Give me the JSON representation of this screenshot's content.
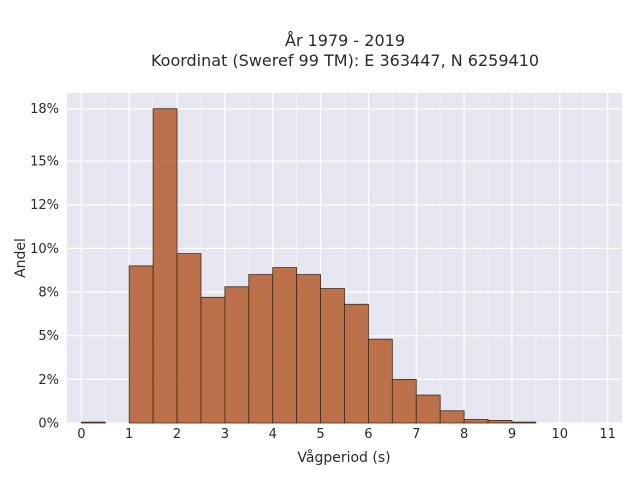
{
  "chart_data": {
    "type": "bar",
    "title_line1": "År 1979 - 2019",
    "title_line2": "Koordinat (Sweref 99 TM): E 363447, N 6259410",
    "xlabel": "Vågperiod (s)",
    "ylabel": "Andel",
    "bin_width": 0.5,
    "bin_starts": [
      0,
      0.5,
      1,
      1.5,
      2,
      2.5,
      3,
      3.5,
      4,
      4.5,
      5,
      5.5,
      6,
      6.5,
      7,
      7.5,
      8,
      8.5,
      9,
      9.5,
      10,
      10.5
    ],
    "values": [
      0.05,
      0,
      9.0,
      18.0,
      9.7,
      7.2,
      7.8,
      8.5,
      8.9,
      8.5,
      7.7,
      6.8,
      4.8,
      2.5,
      1.6,
      0.7,
      0.2,
      0.15,
      0.05,
      0,
      0,
      0
    ],
    "xlim": [
      -0.3,
      11.3
    ],
    "ylim": [
      0,
      18.9
    ],
    "xticks": [
      0,
      1,
      2,
      3,
      4,
      5,
      6,
      7,
      8,
      9,
      10,
      11
    ],
    "yticks": [
      0,
      2.5,
      5,
      7.5,
      10,
      12.5,
      15,
      18
    ],
    "ytick_labels": [
      "0%",
      "2%",
      "5%",
      "8%",
      "10%",
      "12%",
      "15%",
      "18%"
    ],
    "grid": true,
    "colors": {
      "bar": "#b96a40",
      "bar_edge": "#3d2a1e",
      "plot_bg": "#e6e6f0",
      "grid": "#ffffff"
    }
  }
}
